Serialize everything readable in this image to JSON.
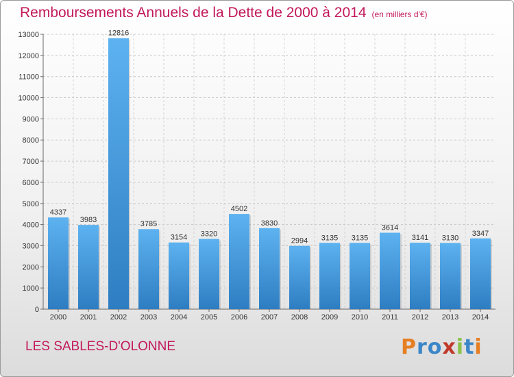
{
  "header": {
    "title": "Remboursements Annuels de la Dette de 2000 à 2014",
    "unit": "(en milliers d'€)"
  },
  "footer": {
    "commune": "LES SABLES-D'OLONNE",
    "logo_text": "Proxiti",
    "logo_colors": [
      "#e67e22",
      "#3b86c8",
      "#3b86c8",
      "#c0392b",
      "#8bc34a",
      "#3b86c8",
      "#e67e22"
    ]
  },
  "chart_data": {
    "type": "bar",
    "title": "Remboursements Annuels de la Dette de 2000 à 2014",
    "subtitle": "(en milliers d'€)",
    "categories": [
      "2000",
      "2001",
      "2002",
      "2003",
      "2004",
      "2005",
      "2006",
      "2007",
      "2008",
      "2009",
      "2010",
      "2011",
      "2012",
      "2013",
      "2014"
    ],
    "values": [
      4337,
      3983,
      12816,
      3785,
      3154,
      3320,
      4502,
      3830,
      2994,
      3135,
      3135,
      3614,
      3141,
      3130,
      3347
    ],
    "data_labels": [
      "4337",
      "3983",
      "12816",
      "3785",
      "3154",
      "3320",
      "4502",
      "3830",
      "2994",
      "3135",
      "3135",
      "3614",
      "3141",
      "3130",
      "3347"
    ],
    "y_ticks": [
      0,
      1000,
      2000,
      3000,
      4000,
      5000,
      6000,
      7000,
      8000,
      9000,
      10000,
      11000,
      12000,
      13000
    ],
    "ylim": [
      0,
      13000
    ],
    "grid": true,
    "bar_color": "#4aa3e6",
    "bar_color_dark": "#2f7fc4"
  }
}
